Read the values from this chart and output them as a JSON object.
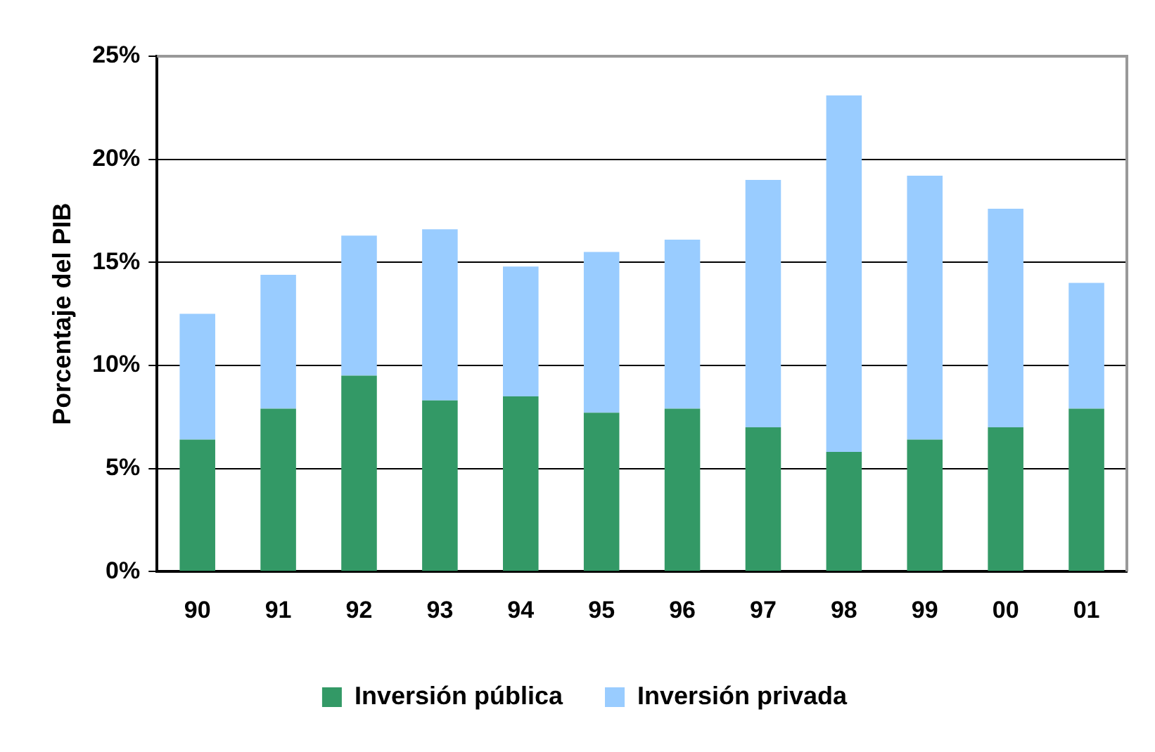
{
  "chart_data": {
    "type": "bar",
    "ylabel": "Porcentaje del PIB",
    "categories": [
      "90",
      "91",
      "92",
      "93",
      "94",
      "95",
      "96",
      "97",
      "98",
      "99",
      "00",
      "01"
    ],
    "series": [
      {
        "name": "Inversión pública",
        "color": "#339966",
        "values": [
          6.4,
          7.9,
          9.5,
          8.3,
          8.5,
          7.7,
          7.9,
          7.0,
          5.8,
          6.4,
          7.0,
          7.9
        ]
      },
      {
        "name": "Inversión privada",
        "color": "#99ccff",
        "values": [
          6.1,
          6.5,
          6.8,
          8.3,
          6.3,
          7.8,
          8.2,
          12.0,
          17.3,
          12.8,
          10.6,
          6.1
        ]
      }
    ],
    "stacked": true,
    "ylim": [
      0,
      25
    ],
    "yticks": [
      {
        "value": 0,
        "label": "0%"
      },
      {
        "value": 5,
        "label": "5%"
      },
      {
        "value": 10,
        "label": "10%"
      },
      {
        "value": 15,
        "label": "15%"
      },
      {
        "value": 20,
        "label": "20%"
      },
      {
        "value": 25,
        "label": "25%"
      }
    ],
    "grid": "y",
    "legend": "bottom"
  }
}
